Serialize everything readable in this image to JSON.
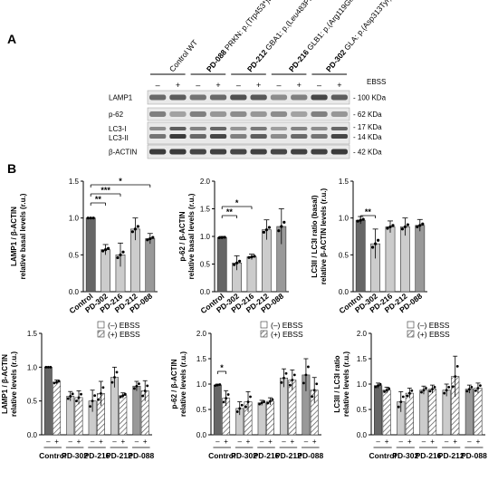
{
  "panel_a": {
    "letter": "A",
    "lane_headers": [
      {
        "bold": "",
        "rest": "Control WT"
      },
      {
        "bold": "PD-088",
        "rest": "PRKN: p.(Trp453*)Exon3-6del"
      },
      {
        "bold": "PD-212",
        "rest": "GBA1: p.(Leu483Pro)"
      },
      {
        "bold": "PD-216",
        "rest": "GLB1: p.(Arg119Gln)"
      },
      {
        "bold": "PD-302",
        "rest": "GLA: p.(Asp313Tyr)"
      }
    ],
    "ebss_label": "EBSS",
    "signs": [
      "–",
      "+",
      "–",
      "+",
      "–",
      "+",
      "–",
      "+",
      "–",
      "+"
    ],
    "blot_rows": [
      {
        "name": "LAMP1",
        "size": "- 100 KDa"
      },
      {
        "name": "p-62",
        "size": "- 62 KDa"
      },
      {
        "name": "LC3-I\nLC3-II",
        "size": "- 17 KDa\n- 14 KDa"
      },
      {
        "name": "β-ACTIN",
        "size": "- 42 KDa"
      }
    ],
    "lc3_names": [
      "LC3-I",
      "LC3-II"
    ],
    "lc3_sizes": [
      "- 17 KDa",
      "- 14 KDa"
    ]
  },
  "panel_b": {
    "letter": "B"
  },
  "chart_data": [
    {
      "type": "bar",
      "ylabel": [
        "LAMP1 / β-ACTIN",
        "relative basal levels (r.u.)"
      ],
      "categories": [
        "Control",
        "PD-302",
        "PD-216",
        "PD-212",
        "PD-088"
      ],
      "values": [
        1.0,
        0.57,
        0.5,
        0.85,
        0.72
      ],
      "errors": [
        0.0,
        0.07,
        0.16,
        0.15,
        0.07
      ],
      "colors": [
        "#666666",
        "#cccccc",
        "#cccccc",
        "#cccccc",
        "#999999"
      ],
      "ylim": [
        0,
        1.5
      ],
      "yticks": [
        "0.0",
        "0.5",
        "1.0",
        "1.5"
      ],
      "annotations": [
        "**",
        "***",
        "*"
      ]
    },
    {
      "type": "bar",
      "ylabel": [
        "p-62 / β-ACTIN",
        "relative basal levels (r.u.)"
      ],
      "categories": [
        "Control",
        "PD-302",
        "PD-216",
        "PD-212",
        "PD-088"
      ],
      "values": [
        0.98,
        0.52,
        0.63,
        1.12,
        1.18
      ],
      "errors": [
        0.02,
        0.13,
        0.05,
        0.18,
        0.32
      ],
      "colors": [
        "#666666",
        "#cccccc",
        "#cccccc",
        "#cccccc",
        "#999999"
      ],
      "ylim": [
        0,
        2.0
      ],
      "yticks": [
        "0.0",
        "0.5",
        "1.0",
        "1.5",
        "2.0"
      ],
      "annotations": [
        "**",
        "*"
      ]
    },
    {
      "type": "bar",
      "ylabel": [
        "LC3II / LC3I ratio (basal)",
        "relative β-ACTIN levels (r.u.)"
      ],
      "categories": [
        "Control",
        "PD-302",
        "PD-216",
        "PD-212",
        "PD-088"
      ],
      "values": [
        0.97,
        0.65,
        0.88,
        0.88,
        0.9
      ],
      "errors": [
        0.05,
        0.2,
        0.08,
        0.12,
        0.08
      ],
      "colors": [
        "#666666",
        "#cccccc",
        "#cccccc",
        "#cccccc",
        "#999999"
      ],
      "ylim": [
        0,
        1.5
      ],
      "yticks": [
        "0.0",
        "0.5",
        "1.0",
        "1.5"
      ],
      "annotations": [
        "**"
      ]
    },
    {
      "type": "bar",
      "ylabel": [
        "LAMP1 / β-ACTIN",
        "relative levels (r.u.)"
      ],
      "categories": [
        "Control",
        "PD-302",
        "PD-216",
        "PD-212",
        "PD-088"
      ],
      "series": [
        {
          "name": "(–) EBSS",
          "values": [
            1.0,
            0.57,
            0.5,
            0.85,
            0.72
          ],
          "errors": [
            0.0,
            0.07,
            0.16,
            0.15,
            0.07
          ]
        },
        {
          "name": "(+) EBSS",
          "values": [
            0.78,
            0.55,
            0.61,
            0.58,
            0.65
          ],
          "errors": [
            0.03,
            0.1,
            0.18,
            0.04,
            0.15
          ]
        }
      ],
      "legend": [
        "(–) EBSS",
        "(+) EBSS"
      ],
      "ylim": [
        0,
        1.5
      ],
      "yticks": [
        "0.0",
        "0.5",
        "1.0",
        "1.5"
      ],
      "annotations": [],
      "signs": [
        "–",
        "+"
      ]
    },
    {
      "type": "bar",
      "ylabel": [
        "p-62 / β-ACTIN",
        "relative levels (r.u.)"
      ],
      "categories": [
        "Control",
        "PD-302",
        "PD-216",
        "PD-212",
        "PD-088"
      ],
      "series": [
        {
          "name": "(–) EBSS",
          "values": [
            0.98,
            0.52,
            0.63,
            1.12,
            1.18
          ],
          "errors": [
            0.02,
            0.13,
            0.05,
            0.18,
            0.32
          ]
        },
        {
          "name": "(+) EBSS",
          "values": [
            0.72,
            0.65,
            0.66,
            1.08,
            0.88
          ],
          "errors": [
            0.15,
            0.2,
            0.07,
            0.2,
            0.25
          ]
        }
      ],
      "legend": [
        "(–) EBSS",
        "(+) EBSS"
      ],
      "ylim": [
        0,
        2.0
      ],
      "yticks": [
        "0.0",
        "0.5",
        "1.0",
        "1.5",
        "2.0"
      ],
      "annotations": [
        "*"
      ],
      "signs": [
        "–",
        "+"
      ]
    },
    {
      "type": "bar",
      "ylabel": [
        "LC3II / LC3I ratio",
        "relative levels (r.u.)"
      ],
      "categories": [
        "Control",
        "PD-302",
        "PD-216",
        "PD-212",
        "PD-088"
      ],
      "series": [
        {
          "name": "(–) EBSS",
          "values": [
            0.97,
            0.65,
            0.88,
            0.88,
            0.9
          ],
          "errors": [
            0.05,
            0.2,
            0.08,
            0.12,
            0.08
          ]
        },
        {
          "name": "(+) EBSS",
          "values": [
            0.88,
            0.82,
            0.9,
            1.15,
            0.92
          ],
          "errors": [
            0.06,
            0.1,
            0.08,
            0.4,
            0.1
          ]
        }
      ],
      "legend": [
        "(–) EBSS",
        "(+) EBSS"
      ],
      "ylim": [
        0,
        2.0
      ],
      "yticks": [
        "0.0",
        "0.5",
        "1.0",
        "1.5",
        "2.0"
      ],
      "annotations": [],
      "signs": [
        "–",
        "+"
      ]
    }
  ]
}
